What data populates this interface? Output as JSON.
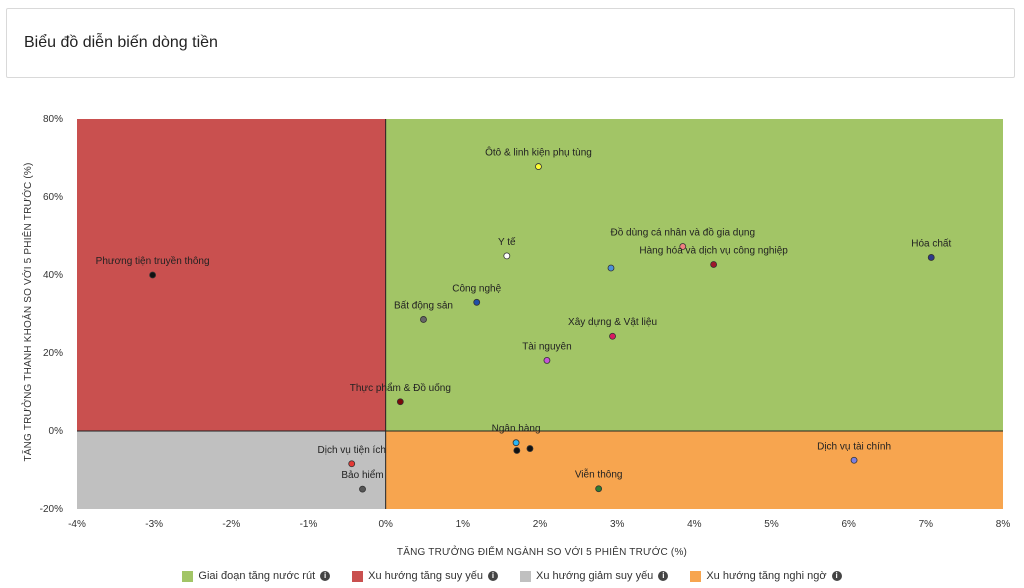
{
  "header": {
    "title": "Biểu đồ diễn biến dòng tiền"
  },
  "legend": [
    {
      "label": "Giai đoạn tăng nước rút",
      "color": "#a2c566",
      "info": "i"
    },
    {
      "label": "Xu hướng tăng suy yếu",
      "color": "#c9504f",
      "info": "i"
    },
    {
      "label": "Xu hướng giảm suy yếu",
      "color": "#c0c0c0",
      "info": "i"
    },
    {
      "label": "Xu hướng tăng nghi ngờ",
      "color": "#f7a54f",
      "info": "i"
    }
  ],
  "chart_data": {
    "type": "scatter",
    "xlabel": "TĂNG TRƯỞNG ĐIỂM NGÀNH SO VỚI 5 PHIÊN TRƯỚC (%)",
    "ylabel": "TĂNG TRƯỞNG THANH KHOẢN SO VỚI 5 PHIÊN TRƯỚC (%)",
    "xlim": [
      -4,
      8
    ],
    "ylim": [
      -20,
      80
    ],
    "x_ticks": [
      {
        "value": -4,
        "label": "-4%"
      },
      {
        "value": -3,
        "label": "-3%"
      },
      {
        "value": -2,
        "label": "-2%"
      },
      {
        "value": -1,
        "label": "-1%"
      },
      {
        "value": 0,
        "label": "0%"
      },
      {
        "value": 1,
        "label": "1%"
      },
      {
        "value": 2,
        "label": "2%"
      },
      {
        "value": 3,
        "label": "3%"
      },
      {
        "value": 4,
        "label": "4%"
      },
      {
        "value": 5,
        "label": "5%"
      },
      {
        "value": 6,
        "label": "6%"
      },
      {
        "value": 7,
        "label": "7%"
      },
      {
        "value": 8,
        "label": "8%"
      }
    ],
    "y_ticks": [
      {
        "value": 80,
        "label": "80%"
      },
      {
        "value": 60,
        "label": "60%"
      },
      {
        "value": 40,
        "label": "40%"
      },
      {
        "value": 20,
        "label": "20%"
      },
      {
        "value": 0,
        "label": "0%"
      },
      {
        "value": -20,
        "label": "-20%"
      }
    ],
    "quadrants": [
      {
        "name": "top-right",
        "color": "#a2c566"
      },
      {
        "name": "top-left",
        "color": "#c9504f"
      },
      {
        "name": "bottom-left",
        "color": "#c0c0c0"
      },
      {
        "name": "bottom-right",
        "color": "#f7a54f"
      }
    ],
    "points": [
      {
        "label": "Ôtô & linh kiện phụ tùng",
        "x": 1.98,
        "y": 67.8,
        "color": "#ffff33",
        "anchor": "middle"
      },
      {
        "label": "Phương tiện truyền thông",
        "x": -3.02,
        "y": 40.0,
        "color": "#111111",
        "anchor": "middle"
      },
      {
        "label": "Y tế",
        "x": 1.57,
        "y": 44.9,
        "color": "#ffffff",
        "anchor": "middle"
      },
      {
        "label": "Đồ dùng cá nhân và đồ gia dụng",
        "x": 3.85,
        "y": 47.3,
        "color": "#f08080",
        "anchor": "middle"
      },
      {
        "label": "Hàng hóa và dịch vụ công nghiệp",
        "x": 4.25,
        "y": 42.7,
        "color": "#a0162c",
        "anchor": "middle"
      },
      {
        "label": "",
        "x": 2.92,
        "y": 41.8,
        "color": "#4a90d9",
        "anchor": "middle"
      },
      {
        "label": "Hóa chất",
        "x": 7.07,
        "y": 44.5,
        "color": "#2e3a8c",
        "anchor": "middle"
      },
      {
        "label": "Công nghệ",
        "x": 1.18,
        "y": 33.0,
        "color": "#1f4fa8",
        "anchor": "middle"
      },
      {
        "label": "Bất động sản",
        "x": 0.49,
        "y": 28.6,
        "color": "#666666",
        "anchor": "middle"
      },
      {
        "label": "Xây dựng & Vật liệu",
        "x": 2.94,
        "y": 24.3,
        "color": "#d81b60",
        "anchor": "middle"
      },
      {
        "label": "Tài nguyên",
        "x": 2.09,
        "y": 18.1,
        "color": "#c455d6",
        "anchor": "middle"
      },
      {
        "label": "Thực phẩm & Đồ uống",
        "x": 0.19,
        "y": 7.5,
        "color": "#7a0a0a",
        "anchor": "middle"
      },
      {
        "label": "Dịch vụ tiện ích",
        "x": -0.44,
        "y": -8.4,
        "color": "#e53935",
        "anchor": "middle"
      },
      {
        "label": "Bảo hiểm",
        "x": -0.3,
        "y": -14.9,
        "color": "#555555",
        "anchor": "middle"
      },
      {
        "label": "Ngân hàng",
        "x": 1.69,
        "y": -3.0,
        "color": "#29b6f6",
        "anchor": "middle"
      },
      {
        "label": "",
        "x": 1.7,
        "y": -5.0,
        "color": "#111111",
        "anchor": "middle"
      },
      {
        "label": "",
        "x": 1.87,
        "y": -4.5,
        "color": "#111111",
        "anchor": "middle"
      },
      {
        "label": "Viễn thông",
        "x": 2.76,
        "y": -14.8,
        "color": "#2e7d32",
        "anchor": "middle"
      },
      {
        "label": "Dịch vụ tài chính",
        "x": 6.07,
        "y": -7.5,
        "color": "#7b7fe0",
        "anchor": "middle"
      }
    ]
  }
}
